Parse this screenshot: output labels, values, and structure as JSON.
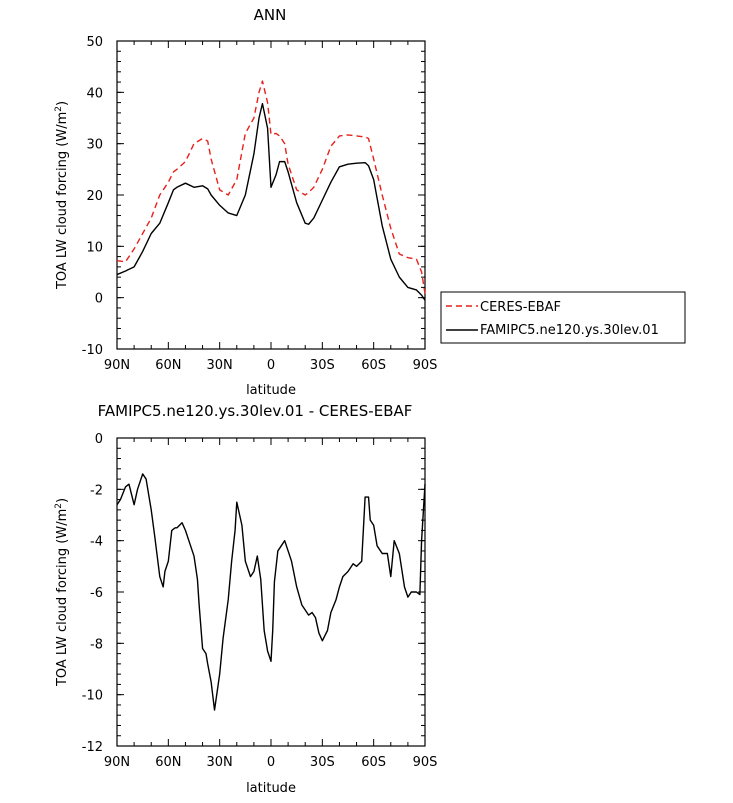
{
  "chart_data": [
    {
      "type": "line",
      "title": "ANN",
      "xlabel": "latitude",
      "ylabel": "TOA LW cloud forcing (W/m²)",
      "ylabel_main": "TOA LW cloud forcing (W/m",
      "ylabel_sup": "2",
      "ylabel_tail": ")",
      "xlim": [
        90,
        -90
      ],
      "ylim": [
        -10,
        50
      ],
      "x_ticks": [
        90,
        60,
        30,
        0,
        -30,
        -60,
        -90
      ],
      "x_tick_labels": [
        "90N",
        "60N",
        "30N",
        "0",
        "30S",
        "60S",
        "90S"
      ],
      "y_ticks": [
        -10,
        0,
        10,
        20,
        30,
        40,
        50
      ],
      "y_tick_labels": [
        "-10",
        "0",
        "10",
        "20",
        "30",
        "40",
        "50"
      ],
      "legend_position": "outside-right",
      "series": [
        {
          "name": "CERES-EBAF",
          "color": "#e8201a",
          "dash": "dashed",
          "x": [
            90,
            85,
            80,
            75,
            70,
            65,
            60,
            57,
            55,
            50,
            45,
            40,
            37,
            35,
            30,
            25,
            20,
            15,
            10,
            7,
            5,
            2,
            0,
            -3,
            -5,
            -8,
            -10,
            -15,
            -20,
            -22,
            -25,
            -30,
            -35,
            -40,
            -45,
            -50,
            -55,
            -57,
            -60,
            -65,
            -70,
            -75,
            -80,
            -85,
            -88,
            -90
          ],
          "y": [
            7.2,
            7.0,
            9.5,
            12.5,
            15.5,
            20.0,
            22.5,
            24.5,
            25.0,
            26.5,
            30.0,
            31.0,
            30.5,
            27.0,
            21.0,
            20.0,
            23.0,
            32.0,
            35.0,
            40.0,
            42.2,
            38.0,
            31.8,
            32.0,
            31.5,
            30.0,
            26.0,
            21.0,
            20.0,
            20.5,
            21.5,
            25.0,
            29.5,
            31.5,
            31.7,
            31.5,
            31.3,
            31.0,
            27.0,
            20.0,
            13.5,
            8.5,
            7.8,
            7.5,
            5.0,
            0.8
          ]
        },
        {
          "name": "FAMIPC5.ne120.ys.30lev.01",
          "color": "#000000",
          "dash": "solid",
          "x": [
            90,
            85,
            80,
            75,
            70,
            65,
            60,
            57,
            55,
            50,
            45,
            40,
            37,
            35,
            30,
            25,
            20,
            15,
            10,
            7,
            5,
            2,
            0,
            -3,
            -5,
            -8,
            -10,
            -15,
            -20,
            -22,
            -25,
            -30,
            -35,
            -40,
            -45,
            -50,
            -55,
            -57,
            -60,
            -65,
            -70,
            -75,
            -80,
            -85,
            -88,
            -90
          ],
          "y": [
            4.5,
            5.2,
            6.0,
            9.0,
            12.5,
            14.5,
            18.5,
            21.0,
            21.5,
            22.3,
            21.5,
            21.8,
            21.2,
            20.0,
            18.0,
            16.5,
            16.0,
            20.0,
            28.0,
            35.0,
            37.8,
            33.0,
            21.5,
            24.0,
            26.5,
            26.5,
            24.5,
            18.5,
            14.5,
            14.3,
            15.5,
            19.0,
            22.5,
            25.5,
            26.0,
            26.2,
            26.3,
            25.7,
            23.0,
            14.0,
            7.5,
            4.0,
            2.0,
            1.5,
            0.5,
            -0.5
          ]
        }
      ]
    },
    {
      "type": "line",
      "title": "FAMIPC5.ne120.ys.30lev.01 - CERES-EBAF",
      "xlabel": "latitude",
      "ylabel": "TOA LW cloud forcing (W/m²)",
      "ylabel_main": "TOA LW cloud forcing (W/m",
      "ylabel_sup": "2",
      "ylabel_tail": ")",
      "xlim": [
        90,
        -90
      ],
      "ylim": [
        -12,
        0
      ],
      "x_ticks": [
        90,
        60,
        30,
        0,
        -30,
        -60,
        -90
      ],
      "x_tick_labels": [
        "90N",
        "60N",
        "30N",
        "0",
        "30S",
        "60S",
        "90S"
      ],
      "y_ticks": [
        -12,
        -10,
        -8,
        -6,
        -4,
        -2,
        0
      ],
      "y_tick_labels": [
        "-12",
        "-10",
        "-8",
        "-6",
        "-4",
        "-2",
        "0"
      ],
      "series": [
        {
          "color": "#000000",
          "dash": "solid",
          "x": [
            90,
            88,
            85,
            83,
            80,
            78,
            75,
            73,
            70,
            68,
            65,
            63,
            62,
            60,
            58,
            56,
            55,
            52,
            50,
            48,
            45,
            43,
            42,
            40,
            38,
            37,
            35,
            33,
            30,
            28,
            25,
            23,
            21,
            20,
            17,
            15,
            12,
            10,
            8,
            6,
            4,
            2,
            0,
            -1,
            -2,
            -4,
            -6,
            -8,
            -10,
            -12,
            -15,
            -18,
            -20,
            -22,
            -24,
            -26,
            -28,
            -30,
            -33,
            -35,
            -38,
            -40,
            -42,
            -45,
            -48,
            -50,
            -53,
            -55,
            -57,
            -58,
            -60,
            -62,
            -65,
            -68,
            -70,
            -72,
            -75,
            -78,
            -80,
            -82,
            -85,
            -87,
            -88,
            -90
          ],
          "y": [
            -2.6,
            -2.4,
            -1.9,
            -1.8,
            -2.6,
            -2.0,
            -1.4,
            -1.6,
            -2.8,
            -3.8,
            -5.4,
            -5.8,
            -5.2,
            -4.8,
            -3.6,
            -3.5,
            -3.5,
            -3.3,
            -3.6,
            -4.0,
            -4.6,
            -5.5,
            -6.5,
            -8.2,
            -8.4,
            -8.8,
            -9.5,
            -10.6,
            -9.2,
            -7.8,
            -6.3,
            -4.8,
            -3.6,
            -2.5,
            -3.4,
            -4.8,
            -5.4,
            -5.2,
            -4.6,
            -5.5,
            -7.5,
            -8.3,
            -8.7,
            -7.5,
            -5.6,
            -4.4,
            -4.2,
            -4.0,
            -4.4,
            -4.8,
            -5.8,
            -6.5,
            -6.7,
            -6.9,
            -6.8,
            -7.0,
            -7.6,
            -7.9,
            -7.5,
            -6.8,
            -6.3,
            -5.8,
            -5.4,
            -5.2,
            -4.9,
            -5.0,
            -4.8,
            -2.3,
            -2.3,
            -3.2,
            -3.4,
            -4.2,
            -4.5,
            -4.5,
            -5.4,
            -4.0,
            -4.5,
            -5.8,
            -6.2,
            -6.0,
            -6.0,
            -6.1,
            -4.0,
            -1.8
          ]
        }
      ]
    }
  ]
}
